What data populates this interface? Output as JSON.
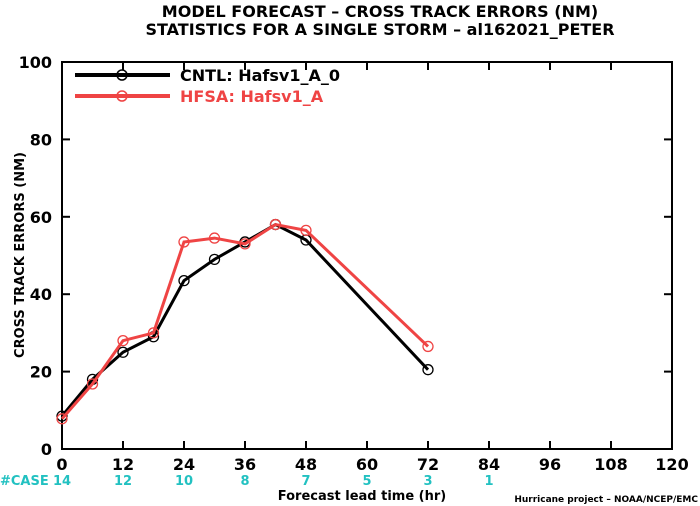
{
  "chart_data": {
    "type": "line",
    "title_line1": "MODEL FORECAST – CROSS TRACK ERRORS (NM)",
    "title_line2": "STATISTICS FOR A SINGLE STORM – al162021_PETER",
    "xlabel": "Forecast lead time (hr)",
    "ylabel": "CROSS TRACK ERRORS (NM)",
    "xlim": [
      0,
      120
    ],
    "ylim": [
      0,
      100
    ],
    "x_ticks": [
      "0",
      "12",
      "24",
      "36",
      "48",
      "60",
      "72",
      "84",
      "96",
      "108",
      "120"
    ],
    "y_ticks": [
      "0",
      "20",
      "40",
      "60",
      "80",
      "100"
    ],
    "case_label": "#CASE",
    "cases": [
      {
        "x": 0,
        "n": "14"
      },
      {
        "x": 12,
        "n": "12"
      },
      {
        "x": 24,
        "n": "10"
      },
      {
        "x": 36,
        "n": "8"
      },
      {
        "x": 48,
        "n": "7"
      },
      {
        "x": 60,
        "n": "5"
      },
      {
        "x": 72,
        "n": "3"
      },
      {
        "x": 84,
        "n": "1"
      }
    ],
    "series": [
      {
        "name": "CNTL: Hafsv1_A_0",
        "color": "#000000",
        "x": [
          0,
          6,
          12,
          18,
          24,
          30,
          36,
          42,
          48,
          72
        ],
        "y": [
          8.5,
          18,
          25,
          29,
          43.5,
          49,
          53.5,
          58,
          54,
          20.5
        ]
      },
      {
        "name": "HFSA: Hafsv1_A",
        "color": "#ef4444",
        "x": [
          0,
          6,
          12,
          18,
          24,
          30,
          36,
          42,
          48,
          72
        ],
        "y": [
          7.8,
          16.8,
          28,
          30,
          53.5,
          54.5,
          53,
          58,
          56.5,
          26.5
        ]
      }
    ],
    "legend_position": "top-left",
    "grid": false,
    "credit": "Hurricane project – NOAA/NCEP/EMC",
    "case_color": "#22c1c1"
  }
}
